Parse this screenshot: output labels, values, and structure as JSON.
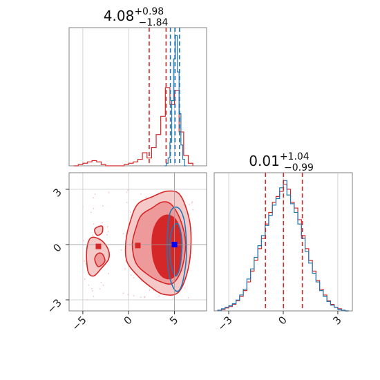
{
  "chart_data": {
    "type": "corner",
    "colors": {
      "red": "#d62728",
      "blue": "#1f77b4",
      "red_fill_light": "#ee9999",
      "red_fill_dark": "#d62728",
      "marker_blue": "#0000ff"
    },
    "grid": true,
    "panels": [
      {
        "id": "hist-x",
        "type": "histogram",
        "xlim": [
          -6.5,
          8.5
        ],
        "title": {
          "value": "4.08",
          "sup": "+0.98",
          "sub": "−1.84"
        },
        "quantile_lines": {
          "red": [
            2.24,
            4.08,
            5.06
          ],
          "blue": [
            4.55,
            5.05,
            5.55
          ]
        },
        "series": [
          {
            "name": "",
            "color": "#d62728",
            "bin_edges": [
              -6.0,
              -5.5,
              -5.0,
              -4.5,
              -4.0,
              -3.5,
              -3.0,
              -2.5,
              -2.0,
              -1.5,
              -1.0,
              -0.5,
              0.0,
              0.5,
              1.0,
              1.5,
              2.0,
              2.5,
              3.0,
              3.5,
              4.0,
              4.5,
              5.0,
              5.5,
              6.0,
              6.5,
              7.0
            ],
            "counts": [
              0,
              1,
              2,
              3,
              4,
              3,
              1,
              0,
              0,
              0,
              0,
              1,
              2,
              3,
              5,
              10,
              6,
              14,
              24,
              38,
              60,
              47,
              58,
              26,
              8,
              2
            ]
          },
          {
            "name": "",
            "color": "#1f77b4",
            "bin_edges": [
              3.9,
              4.1,
              4.3,
              4.5,
              4.7,
              4.9,
              5.1,
              5.3,
              5.5,
              5.7,
              5.9,
              6.1,
              6.3
            ],
            "counts": [
              0,
              2,
              6,
              18,
              50,
              82,
              100,
              72,
              40,
              16,
              5,
              0
            ]
          }
        ]
      },
      {
        "id": "scatter-xy",
        "type": "contour",
        "xlim": [
          -6.5,
          8.5
        ],
        "ylim": [
          -3.6,
          3.9
        ],
        "xticks": [
          -5,
          0,
          5
        ],
        "xtick_labels": [
          "−5",
          "0",
          "5"
        ],
        "yticks": [
          -3,
          0,
          3
        ],
        "ytick_labels": [
          "−3",
          "0",
          "3"
        ],
        "red_contours": [
          {
            "level": "outer",
            "points": [
              [
                -3.9,
                0.4
              ],
              [
                -4.4,
                0.15
              ],
              [
                -4.6,
                -0.6
              ],
              [
                -4.4,
                -1.5
              ],
              [
                -3.8,
                -1.7
              ],
              [
                -3.0,
                -1.3
              ],
              [
                -2.2,
                -0.8
              ],
              [
                -2.2,
                -0.3
              ],
              [
                -2.9,
                0.2
              ]
            ]
          },
          {
            "level": "outer",
            "points": [
              [
                -2.9,
                1.0
              ],
              [
                -3.6,
                0.9
              ],
              [
                -3.7,
                0.7
              ],
              [
                -3.4,
                0.5
              ],
              [
                -2.9,
                0.65
              ]
            ]
          },
          {
            "level": "outer",
            "points": [
              [
                1.0,
                2.2
              ],
              [
                2.6,
                2.6
              ],
              [
                4.2,
                2.9
              ],
              [
                5.6,
                2.7
              ],
              [
                6.6,
                1.4
              ],
              [
                6.8,
                0.0
              ],
              [
                6.4,
                -1.5
              ],
              [
                5.4,
                -2.6
              ],
              [
                3.8,
                -2.7
              ],
              [
                2.4,
                -2.3
              ],
              [
                1.0,
                -1.7
              ],
              [
                -0.2,
                -0.9
              ],
              [
                -0.3,
                0.2
              ],
              [
                0.2,
                1.3
              ]
            ]
          },
          {
            "level": "mid",
            "points": [
              [
                1.4,
                1.6
              ],
              [
                2.6,
                2.0
              ],
              [
                3.6,
                2.3
              ],
              [
                4.6,
                2.2
              ],
              [
                5.6,
                1.4
              ],
              [
                6.2,
                0.1
              ],
              [
                5.8,
                -1.3
              ],
              [
                4.8,
                -2.1
              ],
              [
                3.4,
                -2.0
              ],
              [
                2.0,
                -1.6
              ],
              [
                0.8,
                -1.0
              ],
              [
                0.4,
                0.0
              ],
              [
                0.8,
                0.9
              ]
            ]
          },
          {
            "level": "mid",
            "points": [
              [
                -3.4,
                -0.5
              ],
              [
                -3.7,
                -0.8
              ],
              [
                -3.3,
                -1.2
              ],
              [
                -2.6,
                -0.9
              ],
              [
                -2.9,
                -0.5
              ]
            ]
          },
          {
            "level": "inner",
            "points": [
              [
                3.2,
                1.3
              ],
              [
                4.2,
                1.6
              ],
              [
                5.2,
                1.3
              ],
              [
                5.8,
                0.3
              ],
              [
                5.6,
                -1.1
              ],
              [
                4.8,
                -1.8
              ],
              [
                3.6,
                -1.7
              ],
              [
                2.7,
                -0.8
              ],
              [
                2.6,
                0.5
              ]
            ]
          }
        ],
        "blue_contours": [
          {
            "points": [
              [
                4.5,
                1.7
              ],
              [
                5.4,
                2.0
              ],
              [
                6.1,
                1.2
              ],
              [
                6.3,
                -0.6
              ],
              [
                5.8,
                -2.2
              ],
              [
                5.1,
                -2.5
              ],
              [
                4.4,
                -1.6
              ],
              [
                4.2,
                0.0
              ]
            ]
          },
          {
            "points": [
              [
                4.8,
                0.9
              ],
              [
                5.4,
                1.1
              ],
              [
                5.8,
                0.2
              ],
              [
                5.6,
                -1.2
              ],
              [
                5.1,
                -1.7
              ],
              [
                4.6,
                -1.0
              ],
              [
                4.5,
                0.1
              ]
            ]
          }
        ],
        "markers": [
          {
            "x": -3.3,
            "y": -0.1,
            "color": "#d62728"
          },
          {
            "x": 1.0,
            "y": -0.05,
            "color": "#d62728"
          },
          {
            "x": 5.0,
            "y": 0.0,
            "color": "#0000ff"
          }
        ],
        "truth_lines": {
          "x": 5.0,
          "y": 0.0
        }
      },
      {
        "id": "hist-y",
        "type": "histogram",
        "xlim": [
          -3.8,
          3.8
        ],
        "xticks": [
          -3,
          0,
          3
        ],
        "xtick_labels": [
          "−3",
          "0",
          "3"
        ],
        "title": {
          "value": "0.01",
          "sup": "+1.04",
          "sub": "−0.99"
        },
        "quantile_lines": {
          "red": [
            -0.98,
            0.01,
            1.05
          ]
        },
        "series": [
          {
            "name": "",
            "color": "#d62728",
            "bin_edges": [
              -3.6,
              -3.4,
              -3.2,
              -3.0,
              -2.8,
              -2.6,
              -2.4,
              -2.2,
              -2.0,
              -1.8,
              -1.6,
              -1.4,
              -1.2,
              -1.0,
              -0.8,
              -0.6,
              -0.4,
              -0.2,
              0.0,
              0.2,
              0.4,
              0.6,
              0.8,
              1.0,
              1.2,
              1.4,
              1.6,
              1.8,
              2.0,
              2.2,
              2.4,
              2.6,
              2.8,
              3.0,
              3.2,
              3.4,
              3.6
            ],
            "counts": [
              1,
              2,
              4,
              6,
              9,
              14,
              20,
              28,
              40,
              55,
              70,
              86,
              100,
              120,
              136,
              150,
              158,
              165,
              175,
              168,
              150,
              142,
              126,
              104,
              86,
              70,
              55,
              42,
              30,
              22,
              14,
              9,
              5,
              3,
              1,
              0
            ]
          },
          {
            "name": "",
            "color": "#1f77b4",
            "bin_edges": [
              -3.6,
              -3.4,
              -3.2,
              -3.0,
              -2.8,
              -2.6,
              -2.4,
              -2.2,
              -2.0,
              -1.8,
              -1.6,
              -1.4,
              -1.2,
              -1.0,
              -0.8,
              -0.6,
              -0.4,
              -0.2,
              0.0,
              0.2,
              0.4,
              0.6,
              0.8,
              1.0,
              1.2,
              1.4,
              1.6,
              1.8,
              2.0,
              2.2,
              2.4,
              2.6,
              2.8,
              3.0,
              3.2,
              3.4,
              3.6
            ],
            "counts": [
              1,
              3,
              5,
              7,
              10,
              15,
              22,
              30,
              44,
              58,
              74,
              90,
              104,
              118,
              132,
              146,
              155,
              170,
              180,
              160,
              148,
              136,
              120,
              100,
              82,
              66,
              52,
              40,
              28,
              20,
              13,
              8,
              5,
              2,
              1,
              0
            ]
          }
        ]
      }
    ]
  }
}
